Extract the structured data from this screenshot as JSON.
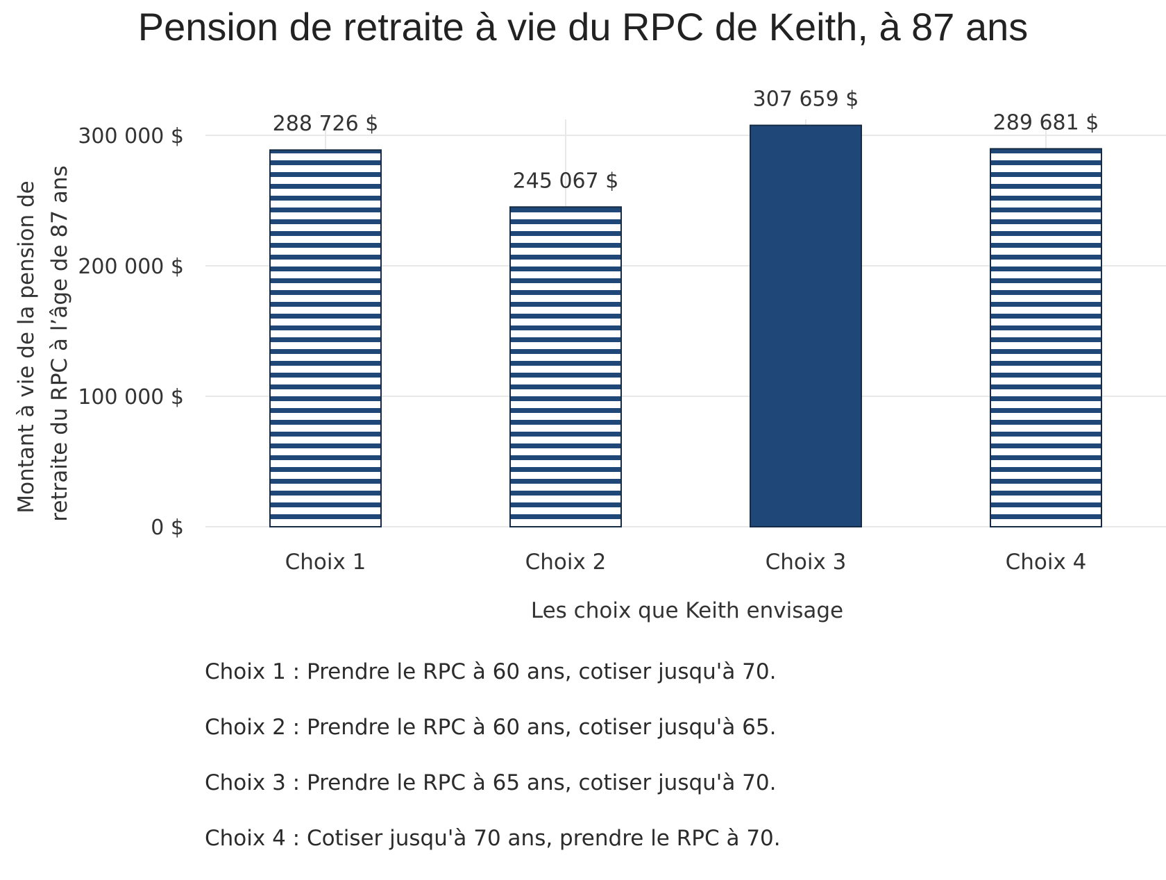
{
  "title": "Pension de retraite à vie du RPC de Keith, à 87 ans",
  "chart_data": {
    "type": "bar",
    "title": "Pension de retraite à vie du RPC de Keith, à 87 ans",
    "xlabel": "Les choix que Keith envisage",
    "ylabel_lines": [
      "Montant à vie de la pension de",
      "retraite du RPC à l’âge de 87 ans"
    ],
    "categories": [
      "Choix 1",
      "Choix 2",
      "Choix 3",
      "Choix 4"
    ],
    "values": [
      288726,
      245067,
      307659,
      289681
    ],
    "value_labels": [
      "288 726 $",
      "245 067 $",
      "307 659 $",
      "289 681 $"
    ],
    "fill_styles": [
      "striped",
      "striped",
      "solid",
      "striped"
    ],
    "ylim": [
      0,
      300000
    ],
    "yticks": [
      0,
      100000,
      200000,
      300000
    ],
    "ytick_labels": [
      "0 $",
      "100 000 $",
      "200 000 $",
      "300 000 $"
    ],
    "grid": true,
    "legend": "none",
    "colors": {
      "bar": "#1f4778",
      "stripe_gap": "#ffffff",
      "grid": "#e8e8e8"
    }
  },
  "notes": [
    "Choix 1 : Prendre le RPC à 60 ans, cotiser jusqu'à 70.",
    "Choix 2 : Prendre le RPC à 60 ans, cotiser jusqu'à 65.",
    "Choix 3 : Prendre le RPC à 65 ans, cotiser jusqu'à 70.",
    "Choix 4 : Cotiser jusqu'à 70 ans, prendre le RPC à 70."
  ]
}
